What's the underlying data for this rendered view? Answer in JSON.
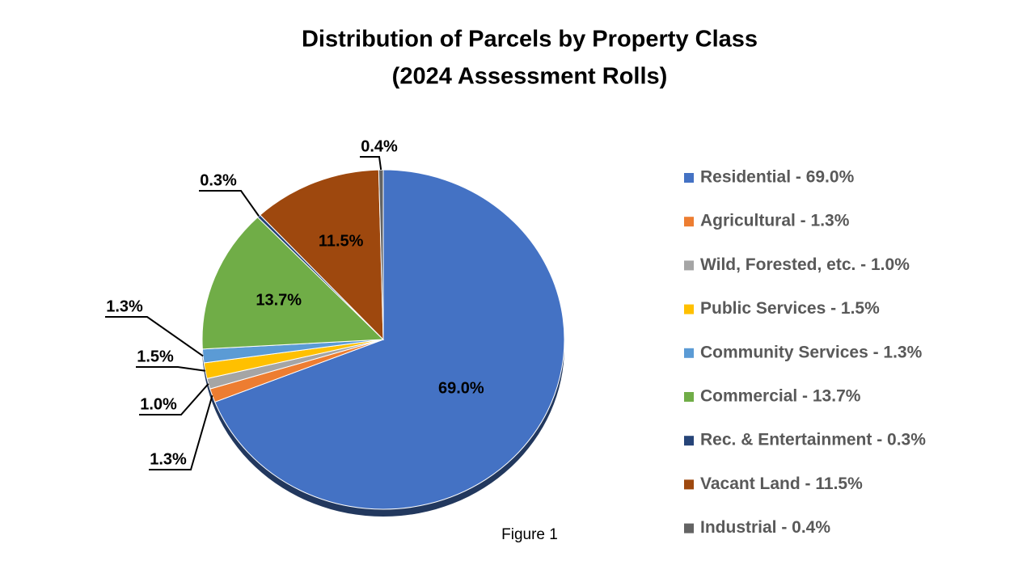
{
  "chart_data": {
    "type": "pie",
    "title": "Distribution of Parcels by Property Class",
    "subtitle": "(2024 Assessment Rolls)",
    "annotation": "Figure 1",
    "categories": [
      "Residential - 69.0%",
      "Agricultural - 1.3%",
      "Wild, Forested, etc. - 1.0%",
      "Public Services - 1.5%",
      "Community Services - 1.3%",
      "Commercial - 13.7%",
      "Rec. & Entertainment - 0.3%",
      "Vacant Land - 11.5%",
      "Industrial - 0.4%"
    ],
    "values": [
      69.0,
      1.3,
      1.0,
      1.5,
      1.3,
      13.7,
      0.3,
      11.5,
      0.4
    ],
    "value_labels": [
      "69.0%",
      "1.3%",
      "1.0%",
      "1.5%",
      "1.3%",
      "13.7%",
      "0.3%",
      "11.5%",
      "0.4%"
    ],
    "colors": [
      "#4472c4",
      "#ed7d31",
      "#a5a5a5",
      "#ffc000",
      "#5b9bd5",
      "#70ad47",
      "#264478",
      "#9e480e",
      "#636363"
    ],
    "legend": "right"
  }
}
